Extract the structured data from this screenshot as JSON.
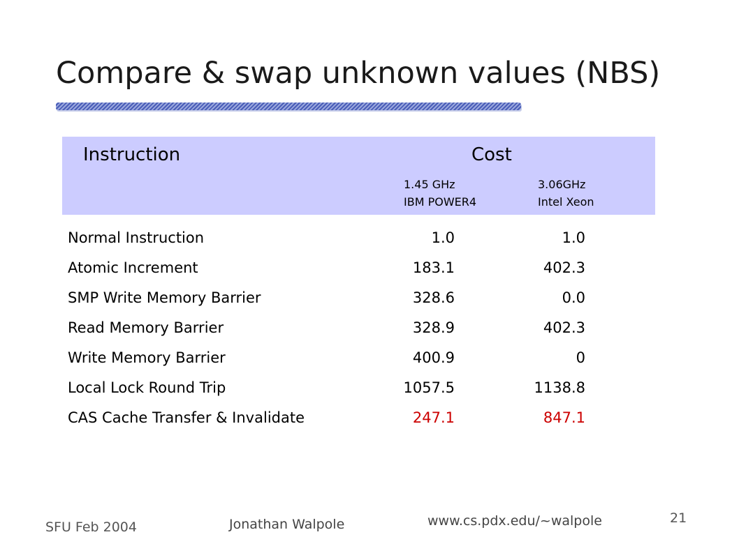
{
  "slide": {
    "title": "Compare & swap unknown values (NBS)"
  },
  "table": {
    "header": {
      "instruction": "Instruction",
      "cost": "Cost",
      "machines": [
        {
          "speed": "1.45 GHz",
          "name": "IBM POWER4"
        },
        {
          "speed": "3.06GHz",
          "name": "Intel Xeon"
        }
      ]
    },
    "rows": [
      {
        "name": "Normal Instruction",
        "v1": "1.0",
        "v2": "1.0"
      },
      {
        "name": "Atomic Increment",
        "v1": "183.1",
        "v2": "402.3"
      },
      {
        "name": "SMP Write Memory Barrier",
        "v1": "328.6",
        "v2": "0.0"
      },
      {
        "name": "Read Memory Barrier",
        "v1": "328.9",
        "v2": "402.3"
      },
      {
        "name": "Write Memory Barrier",
        "v1": "400.9",
        "v2": "0"
      },
      {
        "name": "Local Lock Round Trip",
        "v1": "1057.5",
        "v2": "1138.8"
      },
      {
        "name": "CAS Cache Transfer & Invalidate",
        "v1": "247.1",
        "v2": "847.1",
        "highlight": true
      }
    ]
  },
  "footer": {
    "date": "SFU Feb 2004",
    "author": "Jonathan Walpole",
    "url": "www.cs.pdx.edu/~walpole",
    "page": "21"
  },
  "colors": {
    "header_background": "#ccccff",
    "highlight_text": "#cc0000",
    "title_rule": "#4a5db8"
  }
}
